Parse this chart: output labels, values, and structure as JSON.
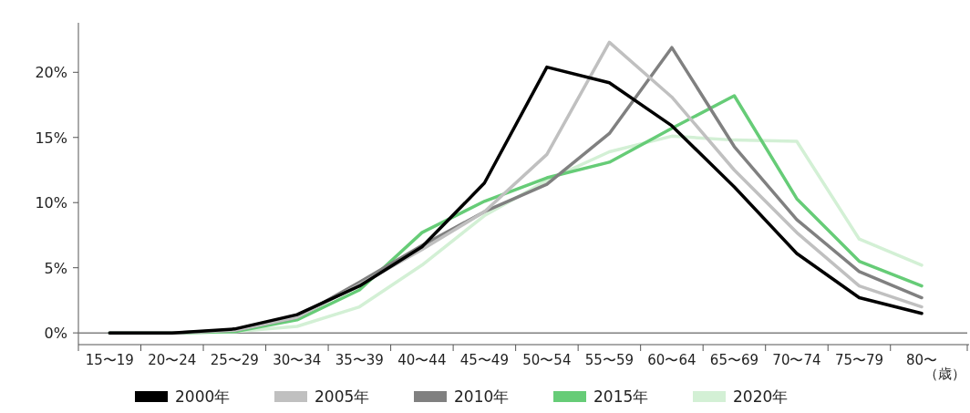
{
  "chart_data": {
    "type": "line",
    "categories": [
      "15〜19",
      "20〜24",
      "25〜29",
      "30〜34",
      "35〜39",
      "40〜44",
      "45〜49",
      "50〜54",
      "55〜59",
      "60〜64",
      "65〜69",
      "70〜74",
      "75〜79",
      "80〜"
    ],
    "xlabel": "（歳）",
    "series": [
      {
        "name": "2000年",
        "color": "#000000",
        "values": [
          0,
          0,
          0.3,
          1.4,
          3.6,
          6.6,
          11.5,
          20.4,
          19.2,
          15.9,
          11.2,
          6.1,
          2.7,
          1.5
        ]
      },
      {
        "name": "2005年",
        "color": "#c0c0c0",
        "values": [
          0,
          0,
          0.2,
          1.2,
          3.7,
          6.4,
          9.3,
          13.7,
          22.3,
          18.1,
          12.5,
          7.7,
          3.6,
          2.0
        ]
      },
      {
        "name": "2010年",
        "color": "#808080",
        "values": [
          0,
          0,
          0.2,
          1.2,
          3.9,
          6.7,
          9.3,
          11.4,
          15.3,
          21.9,
          14.3,
          8.7,
          4.7,
          2.7
        ]
      },
      {
        "name": "2015年",
        "color": "#66cc77",
        "values": [
          0,
          0,
          0.1,
          1.0,
          3.3,
          7.7,
          10.1,
          11.9,
          13.1,
          15.7,
          18.2,
          10.3,
          5.5,
          3.6
        ]
      },
      {
        "name": "2020年",
        "color": "#d3f0d5",
        "values": [
          0,
          0,
          0.1,
          0.5,
          2.0,
          5.2,
          9.0,
          11.7,
          13.9,
          15.1,
          14.8,
          14.7,
          7.2,
          5.2
        ]
      }
    ],
    "ylim": [
      -0.9,
      23.8
    ],
    "yticks": [
      {
        "value": 0,
        "label": "0%"
      },
      {
        "value": 5,
        "label": "5%"
      },
      {
        "value": 10,
        "label": "10%"
      },
      {
        "value": 15,
        "label": "15%"
      },
      {
        "value": 20,
        "label": "20%"
      }
    ],
    "ref_lines": [
      {
        "axis": "y",
        "value": 0,
        "color": "#808080"
      }
    ],
    "grid": false,
    "legend": "bottom",
    "marker": "none",
    "line_style": "solid"
  }
}
